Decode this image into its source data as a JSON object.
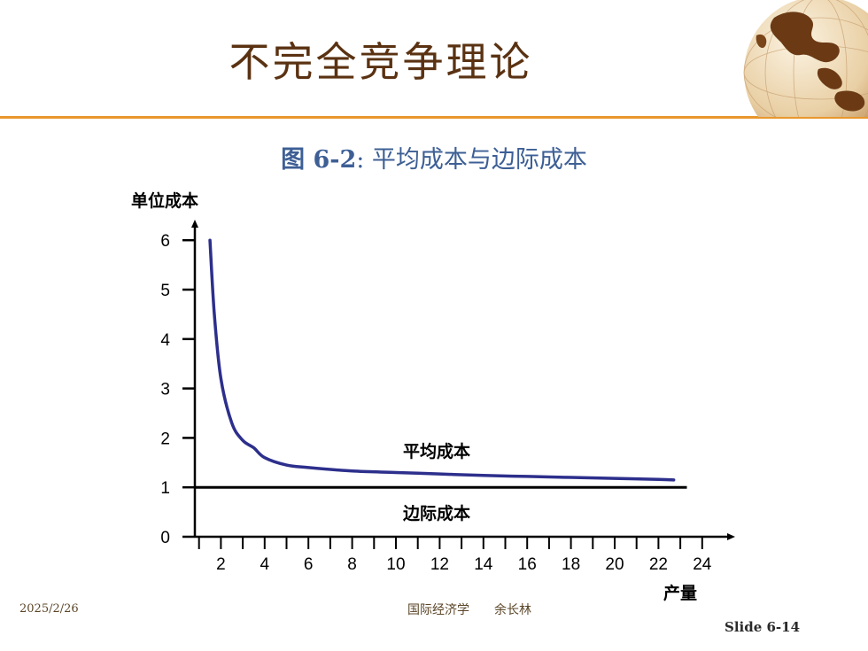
{
  "slide": {
    "title": "不完全竞争理论",
    "figure_label": "图 6-2",
    "figure_caption": ": 平均成本与边际成本",
    "footer_date": "2025/2/26",
    "footer_center": "国际经济学　　余长林",
    "slide_number": "Slide 6-14",
    "accent_color": "#e8972c",
    "title_color": "#5a3212",
    "caption_color": "#3d5f95"
  },
  "chart_data": {
    "type": "line",
    "ylabel": "单位成本",
    "xlabel": "产量",
    "xlim": [
      0,
      25
    ],
    "ylim": [
      0,
      6
    ],
    "x_ticks": [
      2,
      4,
      6,
      8,
      10,
      12,
      14,
      16,
      18,
      20,
      22,
      24
    ],
    "y_ticks": [
      0,
      1,
      2,
      3,
      4,
      5,
      6
    ],
    "series": [
      {
        "name": "平均成本",
        "color": "#2d2f8c",
        "x": [
          1.5,
          1.7,
          2,
          2.5,
          3,
          3.5,
          4,
          5,
          6,
          8,
          10,
          12,
          14,
          16,
          18,
          20,
          22,
          22.7
        ],
        "y": [
          6.0,
          4.5,
          3.2,
          2.3,
          1.95,
          1.8,
          1.6,
          1.45,
          1.4,
          1.33,
          1.3,
          1.27,
          1.24,
          1.22,
          1.2,
          1.18,
          1.16,
          1.15
        ]
      },
      {
        "name": "边际成本",
        "color": "#000000",
        "x": [
          0,
          23.3
        ],
        "y": [
          1,
          1
        ]
      }
    ]
  }
}
